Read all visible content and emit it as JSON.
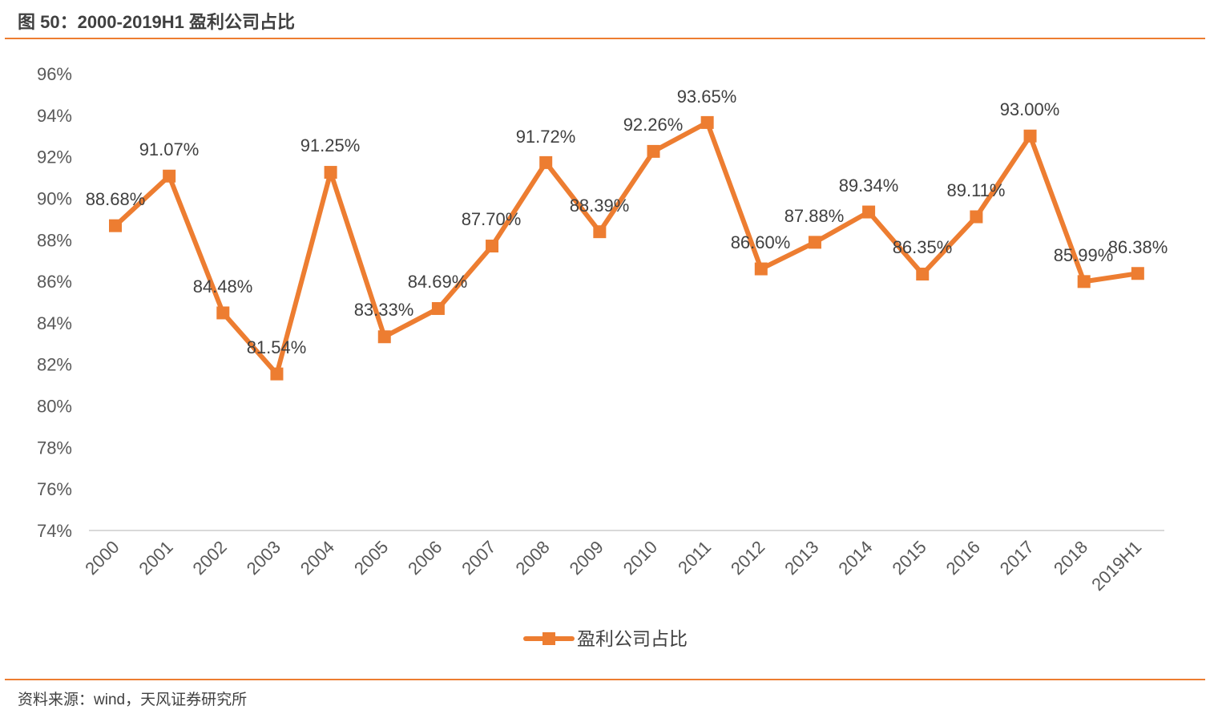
{
  "header": {
    "title": "图 50：2000-2019H1 盈利公司占比"
  },
  "footer": {
    "source": "资料来源：wind，天风证券研究所"
  },
  "colors": {
    "series": "#ED7D31",
    "rule": "#ED7D31",
    "axis": "#D9D9D9",
    "text": "#595959"
  },
  "chart_data": {
    "type": "line",
    "title": "2000-2019H1 盈利公司占比",
    "xlabel": "",
    "ylabel": "",
    "categories": [
      "2000",
      "2001",
      "2002",
      "2003",
      "2004",
      "2005",
      "2006",
      "2007",
      "2008",
      "2009",
      "2010",
      "2011",
      "2012",
      "2013",
      "2014",
      "2015",
      "2016",
      "2017",
      "2018",
      "2019H1"
    ],
    "series": [
      {
        "name": "盈利公司占比",
        "values": [
          88.68,
          91.07,
          84.48,
          81.54,
          91.25,
          83.33,
          84.69,
          87.7,
          91.72,
          88.39,
          92.26,
          93.65,
          86.6,
          87.88,
          89.34,
          86.35,
          89.11,
          93.0,
          85.99,
          86.38
        ],
        "labels": [
          "88.68%",
          "91.07%",
          "84.48%",
          "81.54%",
          "91.25%",
          "83.33%",
          "84.69%",
          "87.70%",
          "91.72%",
          "88.39%",
          "92.26%",
          "93.65%",
          "86.60%",
          "87.88%",
          "89.34%",
          "86.35%",
          "89.11%",
          "93.00%",
          "85.99%",
          "86.38%"
        ],
        "marker": "square"
      }
    ],
    "ylim": [
      74,
      96
    ],
    "yticks": [
      "74%",
      "76%",
      "78%",
      "80%",
      "82%",
      "84%",
      "86%",
      "88%",
      "90%",
      "92%",
      "94%",
      "96%"
    ],
    "ytick_values": [
      74,
      76,
      78,
      80,
      82,
      84,
      86,
      88,
      90,
      92,
      94,
      96
    ],
    "grid": false,
    "legend": {
      "position": "bottom",
      "entries": [
        "盈利公司占比"
      ]
    }
  }
}
